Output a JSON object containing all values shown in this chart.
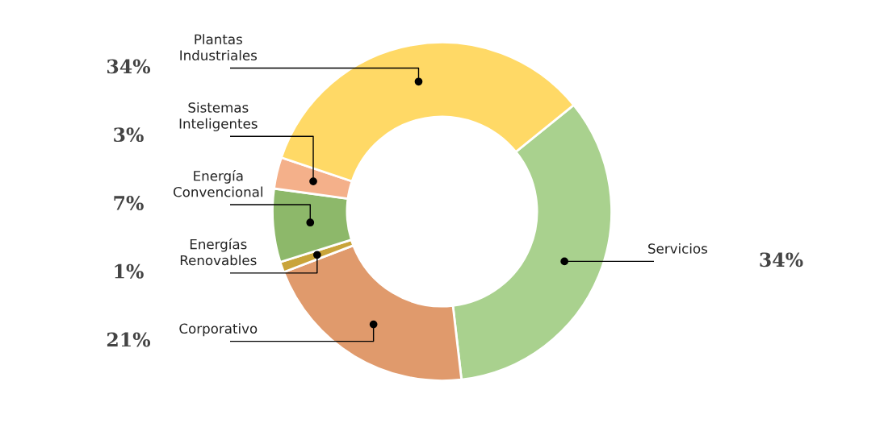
{
  "chart_data": {
    "type": "donut",
    "categories": [
      "Servicios",
      "Corporativo",
      "Energías\nRenovables",
      "Energía\nConvencional",
      "Sistemas\nInteligentes",
      "Plantas\nIndustriales"
    ],
    "values": [
      34,
      21,
      1,
      7,
      3,
      34
    ],
    "value_labels": [
      "34%",
      "21%",
      "1%",
      "7%",
      "3%",
      "34%"
    ],
    "colors": [
      "#a9d18e",
      "#e09a6c",
      "#c9a43a",
      "#8db86a",
      "#f4b08a",
      "#ffd966"
    ],
    "legend": false
  }
}
